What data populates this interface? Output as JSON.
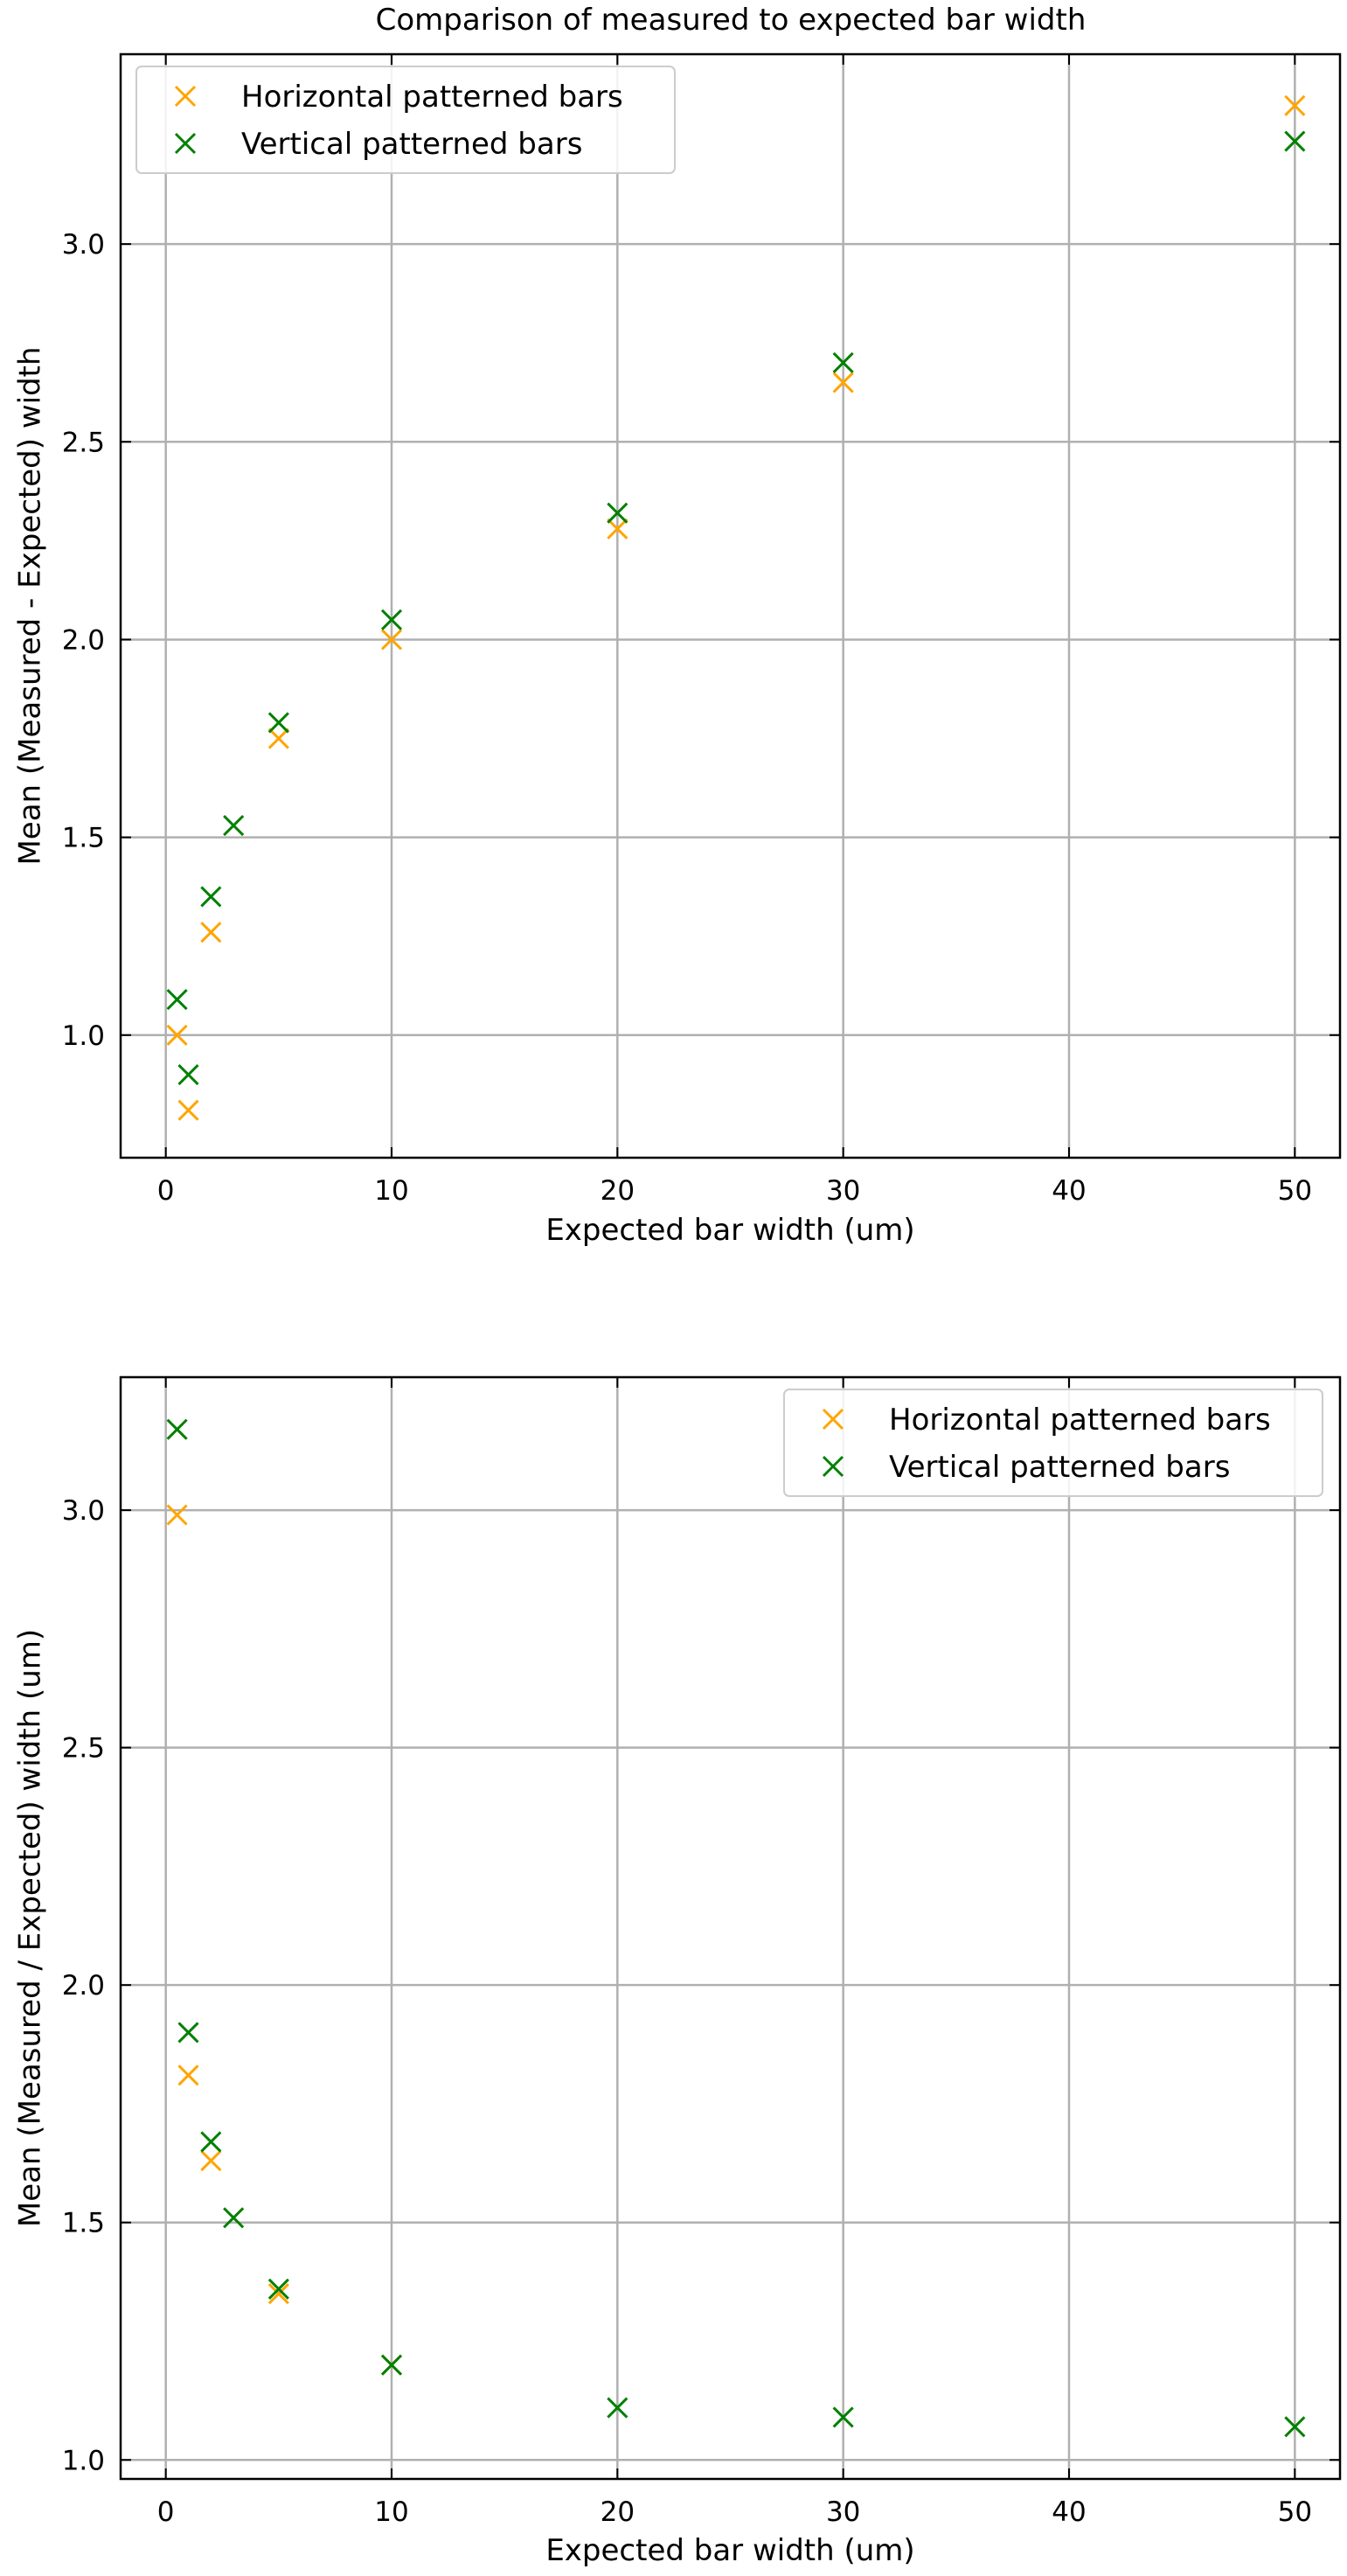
{
  "figure_title": "Comparison of measured to expected bar width",
  "chart_data": [
    {
      "type": "scatter",
      "title": "",
      "xlabel": "Expected bar width (um)",
      "ylabel": "Mean (Measured - Expected) width",
      "xlim": [
        -2,
        52
      ],
      "ylim": [
        0.69,
        3.48
      ],
      "xticks": [
        "0",
        "10",
        "20",
        "30",
        "40",
        "50"
      ],
      "yticks": [
        "1.0",
        "1.5",
        "2.0",
        "2.5",
        "3.0"
      ],
      "grid": true,
      "legend_position": "upper-left",
      "marker": "x",
      "series": [
        {
          "name": "Horizontal patterned bars",
          "color": "#FFA500",
          "x": [
            0.5,
            1,
            2,
            5,
            10,
            20,
            30,
            50
          ],
          "y": [
            1.0,
            0.81,
            1.26,
            1.75,
            2.0,
            2.28,
            2.65,
            3.35
          ]
        },
        {
          "name": "Vertical patterned bars",
          "color": "#008000",
          "x": [
            0.5,
            1,
            2,
            3,
            5,
            10,
            20,
            30,
            50
          ],
          "y": [
            1.09,
            0.9,
            1.35,
            1.53,
            1.79,
            2.05,
            2.32,
            2.7,
            3.26
          ]
        }
      ]
    },
    {
      "type": "scatter",
      "title": "",
      "xlabel": "Expected bar width (um)",
      "ylabel": "Mean (Measured / Expected) width (um)",
      "xlim": [
        -2,
        52
      ],
      "ylim": [
        0.96,
        3.28
      ],
      "xticks": [
        "0",
        "10",
        "20",
        "30",
        "40",
        "50"
      ],
      "yticks": [
        "1.0",
        "1.5",
        "2.0",
        "2.5",
        "3.0"
      ],
      "grid": true,
      "legend_position": "upper-right",
      "marker": "x",
      "series": [
        {
          "name": "Horizontal patterned bars",
          "color": "#FFA500",
          "x": [
            0.5,
            1,
            2,
            5,
            10
          ],
          "y": [
            2.99,
            1.81,
            1.63,
            1.35,
            1.2
          ]
        },
        {
          "name": "Vertical patterned bars",
          "color": "#008000",
          "x": [
            0.5,
            1,
            2,
            3,
            5,
            10,
            20,
            30,
            50
          ],
          "y": [
            3.17,
            1.9,
            1.67,
            1.51,
            1.36,
            1.2,
            1.11,
            1.09,
            1.07
          ]
        }
      ]
    }
  ]
}
